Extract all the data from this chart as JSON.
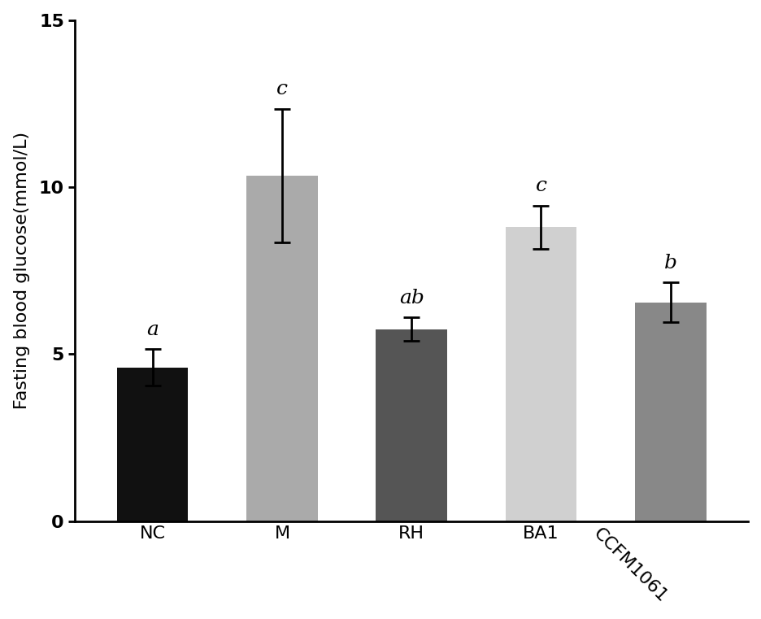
{
  "categories": [
    "NC",
    "M",
    "RH",
    "BA1",
    "CCFM1061"
  ],
  "values": [
    4.6,
    10.35,
    5.75,
    8.8,
    6.55
  ],
  "errors": [
    0.55,
    2.0,
    0.35,
    0.65,
    0.6
  ],
  "bar_colors": [
    "#111111",
    "#aaaaaa",
    "#555555",
    "#d0d0d0",
    "#888888"
  ],
  "labels": [
    "a",
    "c",
    "ab",
    "c",
    "b"
  ],
  "ylabel": "Fasting blood glucose(mmol/L)",
  "ylim": [
    0,
    15
  ],
  "yticks": [
    0,
    5,
    10,
    15
  ],
  "figsize": [
    9.37,
    7.61
  ],
  "dpi": 100,
  "bar_width": 0.55,
  "tick_fontsize": 16,
  "annotation_fontsize": 18,
  "ylabel_fontsize": 16,
  "xtick_rotation": [
    0,
    0,
    0,
    0,
    -45
  ],
  "xtick_ha": [
    "center",
    "center",
    "center",
    "center",
    "right"
  ]
}
